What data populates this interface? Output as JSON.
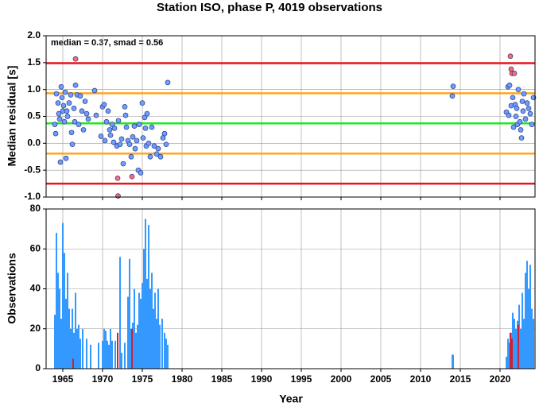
{
  "chart_data": [
    {
      "type": "scatter",
      "title": "Station ISO, phase P, 4019 observations",
      "ylabel": "Median residual [s]",
      "annotation": "median = 0.37, smad = 0.56",
      "xlim": [
        1962.9,
        2024.4
      ],
      "xticks": [
        1965,
        1970,
        1975,
        1980,
        1985,
        1990,
        1995,
        2000,
        2005,
        2010,
        2015,
        2020
      ],
      "ylim": [
        -1,
        2
      ],
      "yticks": [
        {
          "value": 2,
          "label": "2.0"
        },
        1.5,
        {
          "value": 1,
          "label": "1.0"
        },
        0.5,
        {
          "value": 0,
          "label": "0.0"
        },
        -0.5,
        {
          "value": -1,
          "label": "-1.0"
        }
      ],
      "grid": true,
      "reference_lines": [
        {
          "value": 1.49,
          "color": "#e8141b"
        },
        {
          "value": 0.93,
          "color": "#ffa51f"
        },
        {
          "value": 0.37,
          "color": "#1ee81e"
        },
        {
          "value": -0.19,
          "color": "#ffa51f"
        },
        {
          "value": -0.75,
          "color": "#e8141b"
        }
      ],
      "series": [
        {
          "color": "#6c9dff",
          "x": [
            1964.0,
            1964.1,
            1964.2,
            1964.4,
            1964.5,
            1964.6,
            1964.7,
            1964.8,
            1964.9,
            1965.0,
            1965.1,
            1965.2,
            1965.3,
            1965.4,
            1965.5,
            1965.6,
            1965.8,
            1966.0,
            1966.1,
            1966.2,
            1966.4,
            1966.5,
            1966.6,
            1966.8,
            1967.0,
            1967.2,
            1967.4,
            1967.6,
            1967.8,
            1968.0,
            1968.2,
            1969.0,
            1969.2,
            1969.8,
            1970.0,
            1970.2,
            1970.3,
            1970.5,
            1970.7,
            1970.9,
            1971.0,
            1971.2,
            1971.4,
            1971.5,
            1971.8,
            1972.0,
            1972.2,
            1972.4,
            1972.6,
            1972.8,
            1972.9,
            1973.0,
            1973.2,
            1973.4,
            1973.6,
            1973.8,
            1974.0,
            1974.1,
            1974.3,
            1974.5,
            1974.6,
            1974.8,
            1975.0,
            1975.1,
            1975.3,
            1975.4,
            1975.5,
            1975.6,
            1975.8,
            1976.0,
            1976.2,
            1976.5,
            1976.8,
            1977.0,
            1977.3,
            1977.6,
            1977.8,
            1978.0,
            1978.2,
            2014.0,
            2014.1,
            2020.8,
            2021.0,
            2021.1,
            2021.2,
            2021.4,
            2021.6,
            2021.7,
            2021.9,
            2022.0,
            2022.1,
            2022.2,
            2022.3,
            2022.5,
            2022.6,
            2022.7,
            2022.8,
            2022.9,
            2023.0,
            2023.2,
            2023.4,
            2023.6,
            2023.8,
            2024.0,
            2024.2
          ],
          "values": [
            0.35,
            0.18,
            0.92,
            0.75,
            0.55,
            0.45,
            -0.35,
            1.05,
            0.85,
            0.6,
            0.7,
            0.4,
            0.95,
            -0.28,
            0.6,
            0.5,
            0.75,
            0.9,
            0.2,
            -0.02,
            0.65,
            0.4,
            1.08,
            0.9,
            0.35,
            0.88,
            0.6,
            0.25,
            0.78,
            0.55,
            0.45,
            0.98,
            0.52,
            0.13,
            0.68,
            0.72,
            0.05,
            0.4,
            0.6,
            0.25,
            0.15,
            0.35,
            0.02,
            0.28,
            -0.05,
            0.42,
            -0.02,
            0.08,
            -0.38,
            0.68,
            0.52,
            0.3,
            0.05,
            -0.02,
            -0.25,
            0.12,
            0.32,
            -0.1,
            0.05,
            -0.5,
            0.35,
            -0.55,
            0.75,
            0.1,
            0.48,
            0.28,
            -0.05,
            0.55,
            0.0,
            -0.25,
            0.3,
            -0.05,
            -0.2,
            -0.1,
            -0.25,
            0.1,
            0.18,
            -0.02,
            1.13,
            0.88,
            1.06,
            0.58,
            1.05,
            0.52,
            1.08,
            0.7,
            0.85,
            0.3,
            0.72,
            0.5,
            0.65,
            0.35,
            1.0,
            0.4,
            0.25,
            0.1,
            0.78,
            0.6,
            0.92,
            0.45,
            0.75,
            0.65,
            0.55,
            0.35,
            0.85
          ]
        },
        {
          "color": "#ff6b6b",
          "x": [
            1966.6,
            1971.9,
            1971.95,
            1973.7,
            2021.3,
            2021.4,
            2021.5,
            2021.8
          ],
          "values": [
            1.57,
            -0.65,
            -0.98,
            -0.62,
            1.62,
            1.38,
            1.3,
            1.3
          ]
        }
      ]
    },
    {
      "type": "bar",
      "ylabel": "Observations",
      "xlabel": "Year",
      "xlim": [
        1962.9,
        2024.4
      ],
      "xticks": [
        1965,
        1970,
        1975,
        1980,
        1985,
        1990,
        1995,
        2000,
        2005,
        2010,
        2015,
        2020
      ],
      "ylim": [
        0,
        80
      ],
      "yticks": [
        0,
        20,
        40,
        60,
        80
      ],
      "grid": true,
      "series": [
        {
          "color": "#3399ff",
          "x": [
            1964.0,
            1964.2,
            1964.4,
            1964.6,
            1964.8,
            1965.0,
            1965.2,
            1965.4,
            1965.6,
            1965.8,
            1966.0,
            1966.2,
            1966.4,
            1966.6,
            1966.8,
            1967.0,
            1967.2,
            1967.5,
            1968.0,
            1968.5,
            1969.5,
            1970.0,
            1970.2,
            1970.4,
            1970.6,
            1970.8,
            1971.0,
            1971.2,
            1971.6,
            1972.2,
            1972.4,
            1972.8,
            1973.2,
            1973.4,
            1973.6,
            1973.8,
            1974.0,
            1974.2,
            1974.4,
            1974.6,
            1974.8,
            1975.0,
            1975.2,
            1975.4,
            1975.6,
            1975.8,
            1976.0,
            1976.2,
            1976.4,
            1976.6,
            1976.8,
            1977.0,
            1977.2,
            1977.5,
            1977.8,
            1978.0,
            1978.2,
            2014.0,
            2014.1,
            2020.8,
            2021.0,
            2021.2,
            2021.4,
            2021.6,
            2021.8,
            2022.0,
            2022.2,
            2022.4,
            2022.6,
            2022.8,
            2023.0,
            2023.2,
            2023.4,
            2023.6,
            2023.8,
            2024.0,
            2024.2
          ],
          "values": [
            27,
            68,
            48,
            40,
            25,
            73,
            58,
            35,
            48,
            30,
            20,
            30,
            18,
            38,
            20,
            22,
            15,
            20,
            15,
            12,
            13,
            14,
            20,
            19,
            14,
            12,
            20,
            14,
            14,
            56,
            8,
            13,
            36,
            55,
            20,
            23,
            40,
            18,
            22,
            38,
            35,
            43,
            60,
            75,
            45,
            72,
            40,
            48,
            30,
            38,
            25,
            40,
            22,
            25,
            18,
            15,
            12,
            7,
            7,
            6,
            15,
            13,
            18,
            28,
            25,
            20,
            24,
            32,
            20,
            38,
            25,
            48,
            54,
            40,
            52,
            30,
            25
          ]
        },
        {
          "color": "#cc2233",
          "x": [
            1966.3,
            1971.9,
            1973.7,
            2021.3,
            2021.5,
            2022.3
          ],
          "values": [
            5,
            18,
            20,
            18,
            15,
            22
          ]
        }
      ]
    }
  ]
}
